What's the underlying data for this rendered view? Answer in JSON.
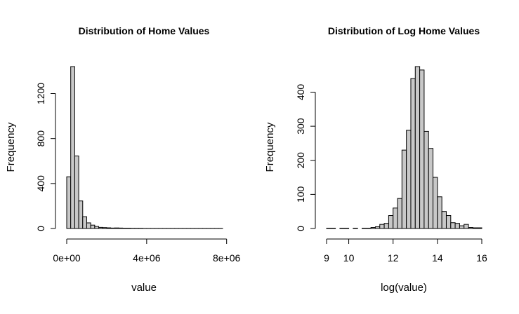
{
  "chart_data": [
    {
      "type": "bar",
      "subtype": "histogram",
      "title": "Distribution of Home Values",
      "xlabel": "value",
      "ylabel": "Frequency",
      "xlim": [
        0,
        7800000
      ],
      "ylim": [
        0,
        1440
      ],
      "x_ticks": [
        0,
        4000000,
        8000000
      ],
      "x_tick_labels": [
        "0e+00",
        "4e+06",
        "8e+06"
      ],
      "y_ticks": [
        0,
        400,
        800,
        1200
      ],
      "y_tick_labels": [
        "0",
        "400",
        "800",
        "1200"
      ],
      "bin_width": 200000,
      "bin_start": 0,
      "values": [
        460,
        1440,
        645,
        245,
        105,
        50,
        30,
        18,
        10,
        8,
        6,
        4,
        5,
        4,
        3,
        3,
        2,
        2,
        2,
        1,
        1,
        1,
        1,
        1,
        1,
        1,
        1,
        1,
        1,
        1,
        1,
        1,
        1,
        1,
        1,
        1,
        1,
        1,
        1
      ]
    },
    {
      "type": "bar",
      "subtype": "histogram",
      "title": "Distribution of Log Home Values",
      "xlabel": "log(value)",
      "ylabel": "Frequency",
      "xlim": [
        9,
        16
      ],
      "ylim": [
        0,
        475
      ],
      "x_ticks": [
        9,
        10,
        12,
        14,
        16
      ],
      "x_tick_labels": [
        "9",
        "10",
        "12",
        "14",
        "16"
      ],
      "y_ticks": [
        0,
        100,
        200,
        300,
        400
      ],
      "y_tick_labels": [
        "0",
        "100",
        "200",
        "300",
        "400"
      ],
      "bin_width": 0.2,
      "bin_start": 9.0,
      "values": [
        1,
        1,
        0,
        1,
        1,
        0,
        1,
        0,
        1,
        1,
        3,
        5,
        12,
        15,
        38,
        60,
        88,
        230,
        288,
        440,
        475,
        465,
        285,
        235,
        150,
        93,
        50,
        38,
        17,
        15,
        8,
        12,
        3,
        2,
        2
      ]
    }
  ]
}
